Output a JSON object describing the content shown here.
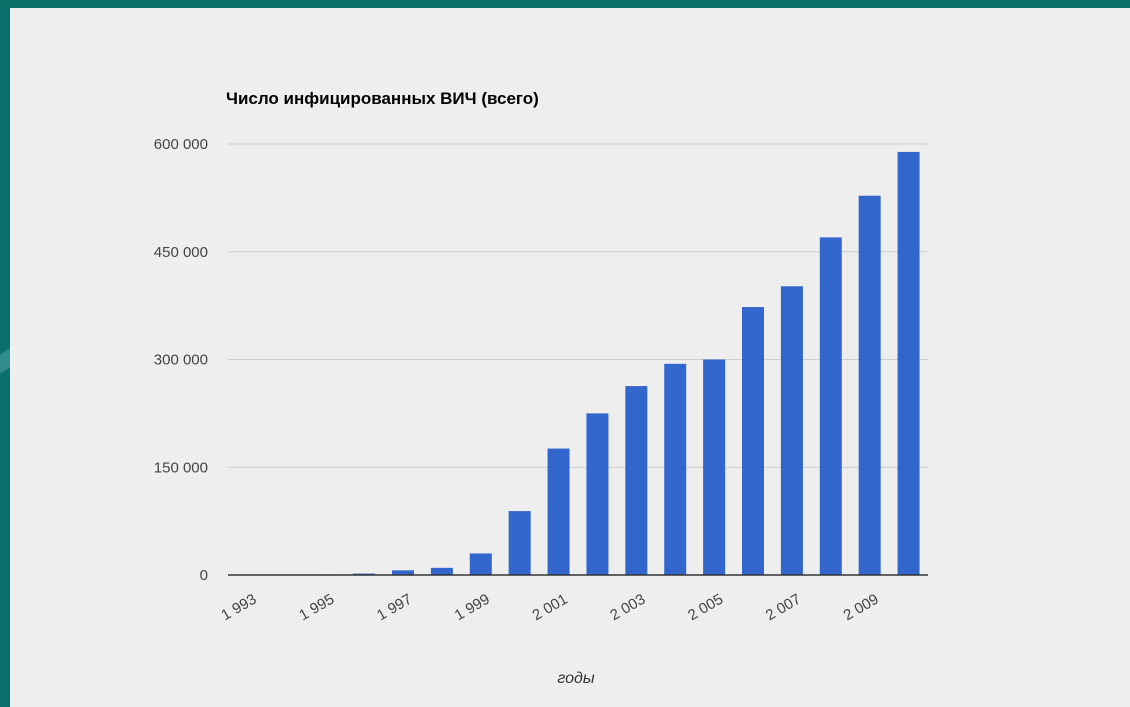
{
  "chart_data": {
    "type": "bar",
    "title": "Число инфицированных ВИЧ (всего)",
    "xlabel": "годы",
    "ylabel": "",
    "ylim": [
      0,
      600000
    ],
    "yticks": [
      0,
      150000,
      300000,
      450000,
      600000
    ],
    "ytick_labels": [
      "0",
      "150 000",
      "300 000",
      "450 000",
      "600 000"
    ],
    "categories": [
      "1993",
      "1994",
      "1995",
      "1996",
      "1997",
      "1998",
      "1999",
      "2000",
      "2001",
      "2002",
      "2003",
      "2004",
      "2005",
      "2006",
      "2007",
      "2008",
      "2009",
      "2010"
    ],
    "xtick_labels": [
      {
        "index": 0,
        "label": "1 993"
      },
      {
        "index": 2,
        "label": "1 995"
      },
      {
        "index": 4,
        "label": "1 997"
      },
      {
        "index": 6,
        "label": "1 999"
      },
      {
        "index": 8,
        "label": "2 001"
      },
      {
        "index": 10,
        "label": "2 003"
      },
      {
        "index": 12,
        "label": "2 005"
      },
      {
        "index": 14,
        "label": "2 007"
      },
      {
        "index": 16,
        "label": "2 009"
      }
    ],
    "values": [
      0,
      200,
      700,
      2000,
      6500,
      10000,
      30000,
      89000,
      176000,
      225000,
      263000,
      294000,
      300000,
      373000,
      402000,
      470000,
      528000,
      589000
    ],
    "bar_color": "#3366cc",
    "grid": true,
    "legend": "none"
  }
}
